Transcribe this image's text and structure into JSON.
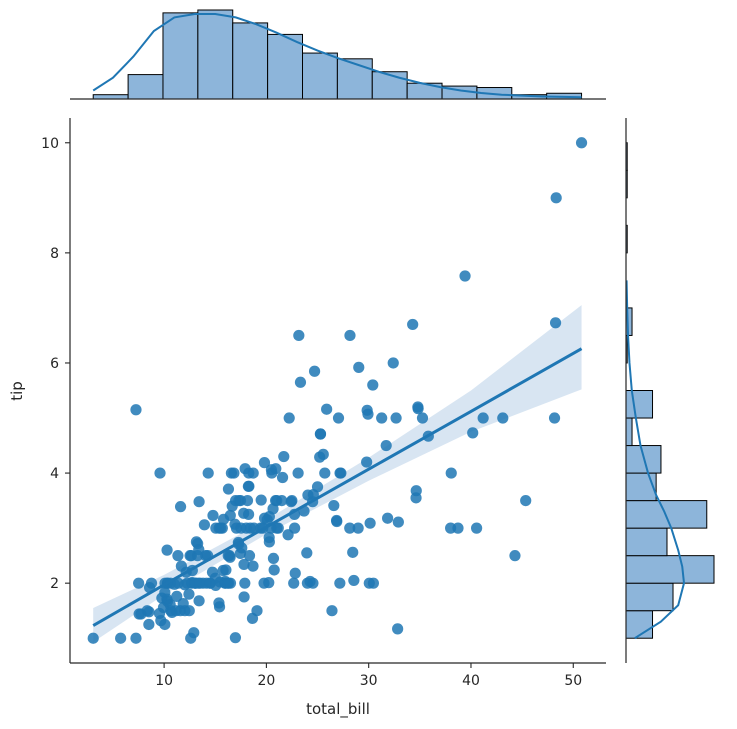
{
  "chart_data": {
    "type": "scatter",
    "subtype": "jointplot-regression",
    "xlabel": "total_bill",
    "ylabel": "tip",
    "xlim": [
      0.8,
      53.2
    ],
    "ylim": [
      0.55,
      10.45
    ],
    "xticks": [
      10,
      20,
      30,
      40,
      50
    ],
    "yticks": [
      2,
      4,
      6,
      8,
      10
    ],
    "grid": false,
    "colors": {
      "points": "#1f77b4",
      "bars": "#8db5da",
      "bar_edge": "#000000",
      "band": "#cbdcee",
      "line": "#1f77b4"
    },
    "points": [
      [
        3.07,
        1.0
      ],
      [
        5.75,
        1.0
      ],
      [
        7.25,
        1.0
      ],
      [
        7.25,
        5.15
      ],
      [
        7.51,
        2.0
      ],
      [
        7.56,
        1.44
      ],
      [
        7.74,
        1.44
      ],
      [
        8.35,
        1.5
      ],
      [
        8.51,
        1.25
      ],
      [
        8.52,
        1.48
      ],
      [
        8.58,
        1.92
      ],
      [
        8.77,
        2.0
      ],
      [
        9.55,
        1.45
      ],
      [
        9.6,
        4.0
      ],
      [
        9.68,
        1.32
      ],
      [
        9.78,
        1.73
      ],
      [
        9.94,
        1.56
      ],
      [
        10.07,
        1.83
      ],
      [
        10.07,
        1.25
      ],
      [
        10.09,
        2.0
      ],
      [
        10.27,
        1.71
      ],
      [
        10.29,
        2.6
      ],
      [
        10.33,
        1.67
      ],
      [
        10.33,
        2.0
      ],
      [
        10.34,
        2.0
      ],
      [
        10.59,
        1.61
      ],
      [
        10.63,
        2.0
      ],
      [
        10.65,
        1.5
      ],
      [
        10.77,
        1.47
      ],
      [
        11.02,
        1.98
      ],
      [
        11.17,
        1.5
      ],
      [
        11.24,
        1.76
      ],
      [
        11.35,
        2.5
      ],
      [
        11.38,
        2.0
      ],
      [
        11.59,
        1.5
      ],
      [
        11.61,
        3.39
      ],
      [
        11.69,
        2.31
      ],
      [
        11.87,
        1.63
      ],
      [
        12.02,
        1.97
      ],
      [
        12.03,
        1.5
      ],
      [
        12.16,
        2.2
      ],
      [
        12.26,
        2.0
      ],
      [
        12.43,
        1.8
      ],
      [
        12.46,
        1.5
      ],
      [
        12.54,
        2.5
      ],
      [
        12.6,
        1.0
      ],
      [
        12.66,
        2.5
      ],
      [
        12.69,
        2.0
      ],
      [
        12.74,
        2.01
      ],
      [
        12.76,
        2.23
      ],
      [
        12.9,
        1.1
      ],
      [
        13.0,
        2.0
      ],
      [
        13.03,
        2.0
      ],
      [
        13.13,
        2.0
      ],
      [
        13.16,
        2.75
      ],
      [
        13.27,
        2.5
      ],
      [
        13.28,
        2.72
      ],
      [
        13.37,
        2.0
      ],
      [
        13.39,
        2.61
      ],
      [
        13.42,
        3.48
      ],
      [
        13.42,
        1.68
      ],
      [
        13.51,
        2.0
      ],
      [
        13.81,
        2.0
      ],
      [
        13.94,
        3.06
      ],
      [
        14.07,
        2.5
      ],
      [
        14.15,
        2.0
      ],
      [
        14.26,
        2.5
      ],
      [
        14.31,
        4.0
      ],
      [
        14.48,
        2.0
      ],
      [
        14.52,
        2.0
      ],
      [
        14.73,
        2.2
      ],
      [
        14.78,
        3.23
      ],
      [
        15.01,
        2.09
      ],
      [
        15.04,
        1.96
      ],
      [
        15.06,
        3.0
      ],
      [
        15.36,
        1.64
      ],
      [
        15.38,
        3.0
      ],
      [
        15.42,
        1.57
      ],
      [
        15.48,
        2.02
      ],
      [
        15.53,
        3.0
      ],
      [
        15.69,
        3.0
      ],
      [
        15.77,
        2.23
      ],
      [
        15.81,
        3.16
      ],
      [
        15.95,
        2.0
      ],
      [
        15.98,
        2.03
      ],
      [
        16.0,
        2.0
      ],
      [
        16.04,
        2.24
      ],
      [
        16.21,
        2.0
      ],
      [
        16.27,
        2.5
      ],
      [
        16.29,
        3.71
      ],
      [
        16.31,
        2.0
      ],
      [
        16.4,
        2.5
      ],
      [
        16.45,
        2.47
      ],
      [
        16.47,
        3.23
      ],
      [
        16.49,
        2.0
      ],
      [
        16.58,
        4.0
      ],
      [
        16.66,
        3.4
      ],
      [
        16.82,
        4.0
      ],
      [
        16.93,
        3.07
      ],
      [
        16.97,
        1.01
      ],
      [
        16.99,
        3.5
      ],
      [
        17.07,
        3.0
      ],
      [
        17.26,
        2.74
      ],
      [
        17.29,
        2.71
      ],
      [
        17.31,
        3.5
      ],
      [
        17.46,
        2.54
      ],
      [
        17.47,
        3.5
      ],
      [
        17.51,
        3.0
      ],
      [
        17.59,
        2.64
      ],
      [
        17.78,
        3.27
      ],
      [
        17.81,
        2.34
      ],
      [
        17.82,
        1.75
      ],
      [
        17.89,
        2.0
      ],
      [
        17.92,
        4.08
      ],
      [
        18.04,
        3.0
      ],
      [
        18.15,
        3.5
      ],
      [
        18.24,
        3.76
      ],
      [
        18.26,
        3.25
      ],
      [
        18.28,
        4.0
      ],
      [
        18.29,
        3.76
      ],
      [
        18.35,
        2.5
      ],
      [
        18.43,
        3.0
      ],
      [
        18.64,
        1.36
      ],
      [
        18.69,
        2.31
      ],
      [
        18.71,
        4.0
      ],
      [
        18.78,
        3.0
      ],
      [
        19.08,
        1.5
      ],
      [
        19.44,
        3.0
      ],
      [
        19.49,
        3.51
      ],
      [
        19.65,
        3.0
      ],
      [
        19.77,
        2.0
      ],
      [
        19.81,
        4.19
      ],
      [
        19.82,
        3.18
      ],
      [
        20.08,
        3.15
      ],
      [
        20.23,
        2.01
      ],
      [
        20.27,
        2.83
      ],
      [
        20.29,
        3.21
      ],
      [
        20.29,
        2.75
      ],
      [
        20.45,
        3.0
      ],
      [
        20.49,
        4.06
      ],
      [
        20.53,
        4.0
      ],
      [
        20.65,
        3.35
      ],
      [
        20.69,
        2.45
      ],
      [
        20.76,
        2.24
      ],
      [
        20.9,
        3.5
      ],
      [
        20.92,
        4.08
      ],
      [
        21.01,
        3.5
      ],
      [
        21.01,
        3.0
      ],
      [
        21.16,
        3.0
      ],
      [
        21.5,
        3.5
      ],
      [
        21.58,
        3.92
      ],
      [
        21.7,
        4.3
      ],
      [
        22.12,
        2.88
      ],
      [
        22.23,
        5.0
      ],
      [
        22.42,
        3.48
      ],
      [
        22.49,
        3.5
      ],
      [
        22.67,
        2.0
      ],
      [
        22.75,
        3.25
      ],
      [
        22.76,
        3.0
      ],
      [
        22.82,
        2.18
      ],
      [
        23.1,
        4.0
      ],
      [
        23.17,
        6.5
      ],
      [
        23.33,
        5.65
      ],
      [
        23.68,
        3.31
      ],
      [
        23.95,
        2.55
      ],
      [
        24.01,
        2.0
      ],
      [
        24.06,
        3.6
      ],
      [
        24.27,
        2.03
      ],
      [
        24.52,
        3.48
      ],
      [
        24.55,
        2.0
      ],
      [
        24.59,
        3.61
      ],
      [
        24.71,
        5.85
      ],
      [
        25.0,
        3.75
      ],
      [
        25.21,
        4.29
      ],
      [
        25.28,
        4.71
      ],
      [
        25.29,
        4.71
      ],
      [
        25.56,
        4.34
      ],
      [
        25.71,
        4.0
      ],
      [
        25.89,
        5.16
      ],
      [
        26.41,
        1.5
      ],
      [
        26.59,
        3.41
      ],
      [
        26.86,
        3.14
      ],
      [
        26.88,
        3.12
      ],
      [
        27.05,
        5.0
      ],
      [
        27.18,
        2.0
      ],
      [
        27.2,
        4.0
      ],
      [
        27.28,
        4.0
      ],
      [
        28.15,
        3.0
      ],
      [
        28.17,
        6.5
      ],
      [
        28.44,
        2.56
      ],
      [
        28.55,
        2.05
      ],
      [
        28.97,
        3.0
      ],
      [
        29.03,
        5.92
      ],
      [
        29.8,
        4.2
      ],
      [
        29.85,
        5.14
      ],
      [
        29.93,
        5.07
      ],
      [
        30.06,
        2.0
      ],
      [
        30.14,
        3.09
      ],
      [
        30.4,
        5.6
      ],
      [
        30.46,
        2.0
      ],
      [
        31.27,
        5.0
      ],
      [
        31.71,
        4.5
      ],
      [
        31.85,
        3.18
      ],
      [
        32.4,
        6.0
      ],
      [
        32.68,
        5.0
      ],
      [
        32.83,
        1.17
      ],
      [
        32.9,
        3.11
      ],
      [
        34.3,
        6.7
      ],
      [
        34.63,
        3.55
      ],
      [
        34.65,
        3.68
      ],
      [
        34.81,
        5.2
      ],
      [
        34.83,
        5.17
      ],
      [
        35.26,
        5.0
      ],
      [
        35.83,
        4.67
      ],
      [
        38.01,
        3.0
      ],
      [
        38.07,
        4.0
      ],
      [
        38.73,
        3.0
      ],
      [
        39.42,
        7.58
      ],
      [
        40.17,
        4.73
      ],
      [
        40.55,
        3.0
      ],
      [
        41.19,
        5.0
      ],
      [
        43.11,
        5.0
      ],
      [
        44.3,
        2.5
      ],
      [
        45.35,
        3.5
      ],
      [
        48.17,
        5.0
      ],
      [
        48.27,
        6.73
      ],
      [
        48.33,
        9.0
      ],
      [
        50.81,
        10.0
      ]
    ],
    "regression": {
      "x": [
        3.07,
        10,
        20,
        30,
        40,
        50.81
      ],
      "y": [
        1.23,
        1.97,
        3.02,
        4.07,
        5.12,
        6.26
      ],
      "ci_lower": [
        0.93,
        1.79,
        2.89,
        3.86,
        4.75,
        5.52
      ],
      "ci_upper": [
        1.55,
        2.15,
        3.15,
        4.28,
        5.5,
        7.05
      ]
    },
    "x_marginal": {
      "bin_edges": [
        3.07,
        6.48,
        9.89,
        13.3,
        16.71,
        20.12,
        23.53,
        26.94,
        30.35,
        33.76,
        37.17,
        40.58,
        43.99,
        47.4,
        50.81
      ],
      "counts": [
        3,
        17,
        60,
        62,
        53,
        45,
        32,
        28,
        19,
        11,
        9,
        8,
        3,
        4
      ],
      "kde_x": [
        3.07,
        5,
        7,
        9,
        11,
        13,
        15,
        17,
        19,
        21,
        23,
        25,
        27,
        29,
        31,
        33,
        35,
        37,
        39,
        41,
        43,
        45,
        47,
        49,
        50.81
      ],
      "kde_y": [
        0.1,
        0.25,
        0.5,
        0.8,
        0.96,
        1.0,
        1.0,
        0.96,
        0.88,
        0.78,
        0.67,
        0.57,
        0.48,
        0.4,
        0.32,
        0.25,
        0.19,
        0.14,
        0.1,
        0.07,
        0.05,
        0.04,
        0.03,
        0.025,
        0.02
      ]
    },
    "y_marginal": {
      "bin_edges": [
        1.0,
        1.5,
        2.0,
        2.5,
        3.0,
        3.5,
        4.0,
        4.5,
        5.0,
        5.5,
        6.0,
        6.5,
        7.0,
        7.5,
        8.0,
        8.5,
        9.0,
        9.5,
        10.0
      ],
      "counts": [
        22,
        39,
        73,
        34,
        67,
        25,
        29,
        5,
        22,
        0,
        1,
        5,
        0,
        0,
        1,
        0,
        1,
        1
      ],
      "kde_x": [
        1.0,
        1.3,
        1.6,
        2.0,
        2.3,
        2.6,
        3.0,
        3.3,
        3.6,
        4.0,
        4.5,
        5.0,
        5.5,
        6.0,
        6.5,
        7.0,
        7.5
      ],
      "kde_y": [
        0.15,
        0.6,
        0.9,
        1.0,
        0.97,
        0.9,
        0.78,
        0.66,
        0.52,
        0.38,
        0.25,
        0.17,
        0.1,
        0.06,
        0.035,
        0.02,
        0.01
      ]
    }
  }
}
